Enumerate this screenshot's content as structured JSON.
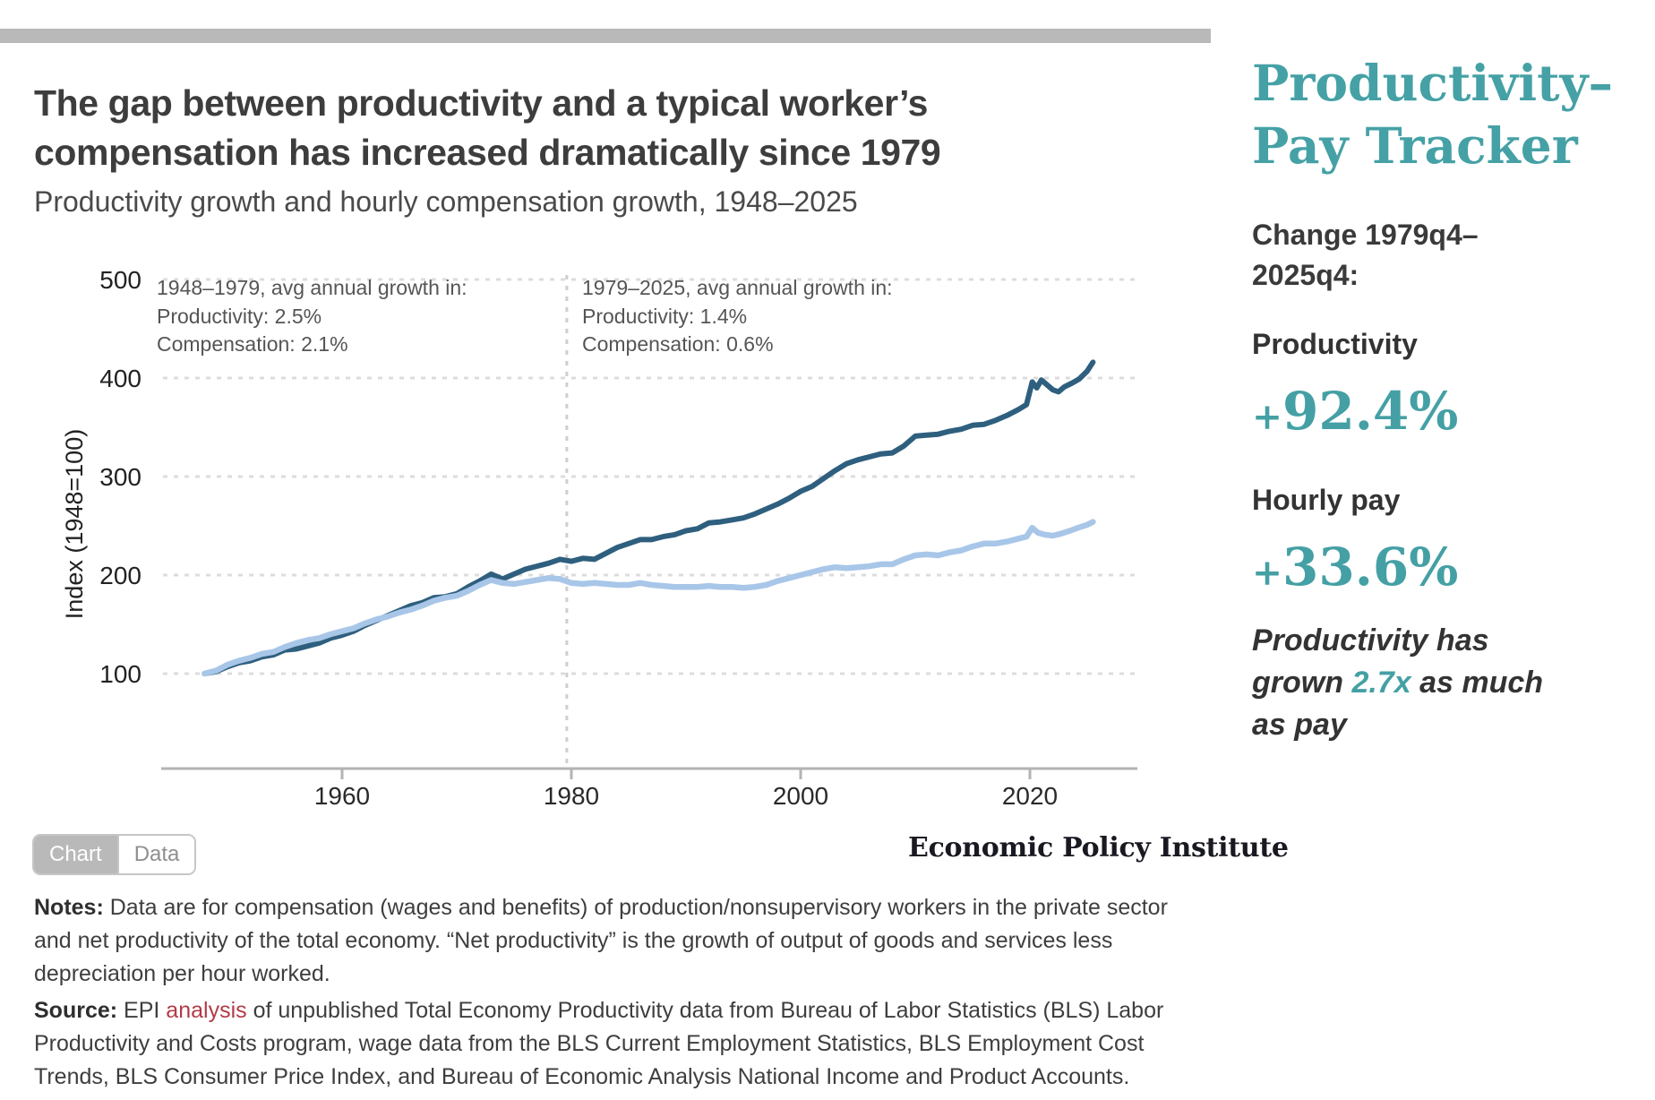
{
  "chart_data": {
    "type": "line",
    "title": "The gap between productivity and a typical worker’s compensation has increased dramatically since 1979",
    "subtitle": "Productivity growth and hourly compensation growth, 1948–2025",
    "xlabel": "",
    "ylabel": "Index (1948=100)",
    "x_ticks": [
      1960,
      1980,
      2000,
      2020
    ],
    "y_ticks": [
      100,
      200,
      300,
      400,
      500
    ],
    "xlim": [
      1944,
      2029
    ],
    "ylim": [
      0,
      500
    ],
    "grid": "dotted horizontal gridlines at each y tick",
    "legend": "none",
    "vline_year": 1979.6,
    "annotations": [
      {
        "lines": [
          "1948–1979, avg annual growth in:",
          "Productivity: 2.5%",
          "Compensation: 2.1%"
        ]
      },
      {
        "lines": [
          "1979–2025, avg annual growth in:",
          "Productivity: 1.4%",
          "Compensation: 0.6%"
        ]
      }
    ],
    "series": [
      {
        "name": "Productivity",
        "slug": "productivity-line",
        "color": "#2f5f7e",
        "width": 6,
        "points": [
          [
            1948,
            100
          ],
          [
            1949,
            102
          ],
          [
            1950,
            107
          ],
          [
            1951,
            111
          ],
          [
            1952,
            113
          ],
          [
            1953,
            117
          ],
          [
            1954,
            119
          ],
          [
            1955,
            124
          ],
          [
            1956,
            125
          ],
          [
            1957,
            128
          ],
          [
            1958,
            131
          ],
          [
            1959,
            136
          ],
          [
            1960,
            139
          ],
          [
            1961,
            143
          ],
          [
            1962,
            149
          ],
          [
            1963,
            154
          ],
          [
            1964,
            159
          ],
          [
            1965,
            164
          ],
          [
            1966,
            169
          ],
          [
            1967,
            172
          ],
          [
            1968,
            177
          ],
          [
            1969,
            178
          ],
          [
            1970,
            181
          ],
          [
            1971,
            188
          ],
          [
            1972,
            194
          ],
          [
            1973,
            201
          ],
          [
            1974,
            196
          ],
          [
            1975,
            201
          ],
          [
            1976,
            206
          ],
          [
            1977,
            209
          ],
          [
            1978,
            212
          ],
          [
            1979,
            216
          ],
          [
            1980,
            214
          ],
          [
            1981,
            217
          ],
          [
            1982,
            216
          ],
          [
            1983,
            222
          ],
          [
            1984,
            228
          ],
          [
            1985,
            232
          ],
          [
            1986,
            236
          ],
          [
            1987,
            236
          ],
          [
            1988,
            239
          ],
          [
            1989,
            241
          ],
          [
            1990,
            245
          ],
          [
            1991,
            247
          ],
          [
            1992,
            253
          ],
          [
            1993,
            254
          ],
          [
            1994,
            256
          ],
          [
            1995,
            258
          ],
          [
            1996,
            262
          ],
          [
            1997,
            267
          ],
          [
            1998,
            272
          ],
          [
            1999,
            278
          ],
          [
            2000,
            285
          ],
          [
            2001,
            290
          ],
          [
            2002,
            298
          ],
          [
            2003,
            306
          ],
          [
            2004,
            313
          ],
          [
            2005,
            317
          ],
          [
            2006,
            320
          ],
          [
            2007,
            323
          ],
          [
            2008,
            324
          ],
          [
            2009,
            331
          ],
          [
            2010,
            341
          ],
          [
            2011,
            342
          ],
          [
            2012,
            343
          ],
          [
            2013,
            346
          ],
          [
            2014,
            348
          ],
          [
            2015,
            352
          ],
          [
            2016,
            353
          ],
          [
            2017,
            357
          ],
          [
            2018,
            362
          ],
          [
            2019,
            368
          ],
          [
            2019.7,
            373
          ],
          [
            2020.2,
            396
          ],
          [
            2020.6,
            390
          ],
          [
            2021,
            398
          ],
          [
            2021.5,
            393
          ],
          [
            2022,
            388
          ],
          [
            2022.5,
            386
          ],
          [
            2023,
            391
          ],
          [
            2023.7,
            395
          ],
          [
            2024.3,
            399
          ],
          [
            2025,
            407
          ],
          [
            2025.5,
            416
          ]
        ]
      },
      {
        "name": "Hourly compensation",
        "slug": "compensation-line",
        "color": "#a8c6e8",
        "width": 6.5,
        "points": [
          [
            1948,
            100
          ],
          [
            1949,
            103
          ],
          [
            1950,
            109
          ],
          [
            1951,
            113
          ],
          [
            1952,
            116
          ],
          [
            1953,
            120
          ],
          [
            1954,
            122
          ],
          [
            1955,
            127
          ],
          [
            1956,
            131
          ],
          [
            1957,
            134
          ],
          [
            1958,
            136
          ],
          [
            1959,
            140
          ],
          [
            1960,
            143
          ],
          [
            1961,
            146
          ],
          [
            1962,
            151
          ],
          [
            1963,
            155
          ],
          [
            1964,
            158
          ],
          [
            1965,
            162
          ],
          [
            1966,
            165
          ],
          [
            1967,
            169
          ],
          [
            1968,
            174
          ],
          [
            1969,
            177
          ],
          [
            1970,
            179
          ],
          [
            1971,
            184
          ],
          [
            1972,
            190
          ],
          [
            1973,
            195
          ],
          [
            1974,
            192
          ],
          [
            1975,
            191
          ],
          [
            1976,
            193
          ],
          [
            1977,
            195
          ],
          [
            1978,
            197
          ],
          [
            1979,
            196
          ],
          [
            1980,
            192
          ],
          [
            1981,
            191
          ],
          [
            1982,
            192
          ],
          [
            1983,
            191
          ],
          [
            1984,
            190
          ],
          [
            1985,
            190
          ],
          [
            1986,
            192
          ],
          [
            1987,
            190
          ],
          [
            1988,
            189
          ],
          [
            1989,
            188
          ],
          [
            1990,
            188
          ],
          [
            1991,
            188
          ],
          [
            1992,
            189
          ],
          [
            1993,
            188
          ],
          [
            1994,
            188
          ],
          [
            1995,
            187
          ],
          [
            1996,
            188
          ],
          [
            1997,
            190
          ],
          [
            1998,
            194
          ],
          [
            1999,
            197
          ],
          [
            2000,
            200
          ],
          [
            2001,
            203
          ],
          [
            2002,
            206
          ],
          [
            2003,
            208
          ],
          [
            2004,
            207
          ],
          [
            2005,
            208
          ],
          [
            2006,
            209
          ],
          [
            2007,
            211
          ],
          [
            2008,
            211
          ],
          [
            2009,
            216
          ],
          [
            2010,
            220
          ],
          [
            2011,
            221
          ],
          [
            2012,
            220
          ],
          [
            2013,
            223
          ],
          [
            2014,
            225
          ],
          [
            2015,
            229
          ],
          [
            2016,
            232
          ],
          [
            2017,
            232
          ],
          [
            2018,
            234
          ],
          [
            2019,
            237
          ],
          [
            2019.7,
            239
          ],
          [
            2020.2,
            248
          ],
          [
            2020.7,
            243
          ],
          [
            2021.3,
            241
          ],
          [
            2022,
            240
          ],
          [
            2022.7,
            242
          ],
          [
            2023.5,
            245
          ],
          [
            2024.2,
            248
          ],
          [
            2025,
            251
          ],
          [
            2025.5,
            254
          ]
        ]
      }
    ]
  },
  "toolbar": {
    "chart_label": "Chart",
    "data_label": "Data"
  },
  "branding": {
    "logo": "Economic Policy Institute"
  },
  "notes": {
    "label": "Notes:",
    "text": "Data are for compensation (wages and benefits) of production/nonsupervisory workers in the private sector and net productivity of the total economy. “Net productivity” is the growth of output of goods and services less depreciation per hour worked."
  },
  "source": {
    "label": "Source:",
    "pre_link": "EPI ",
    "link": "analysis",
    "post_link": " of unpublished Total Economy Productivity data from Bureau of Labor Statistics (BLS) Labor Productivity and Costs program, wage data from the BLS Current Employment Statistics, BLS Employment Cost Trends, BLS Consumer Price Index, and Bureau of Economic Analysis National Income and Product Accounts."
  },
  "sidebar": {
    "title_line1": "Productivity–",
    "title_line2": "Pay Tracker",
    "change_l1": "Change 1979q4–",
    "change_l2": "2025q4:",
    "productivity_label": "Productivity",
    "productivity_value": "+92.4%",
    "pay_label": "Hourly pay",
    "pay_value": "+33.6%",
    "summary_l1": "Productivity has",
    "summary_l2_pre": "grown ",
    "summary_l2_teal": "2.7x",
    "summary_l2_post": " as much",
    "summary_l3": "as pay",
    "accent_color": "#45a1a5"
  }
}
